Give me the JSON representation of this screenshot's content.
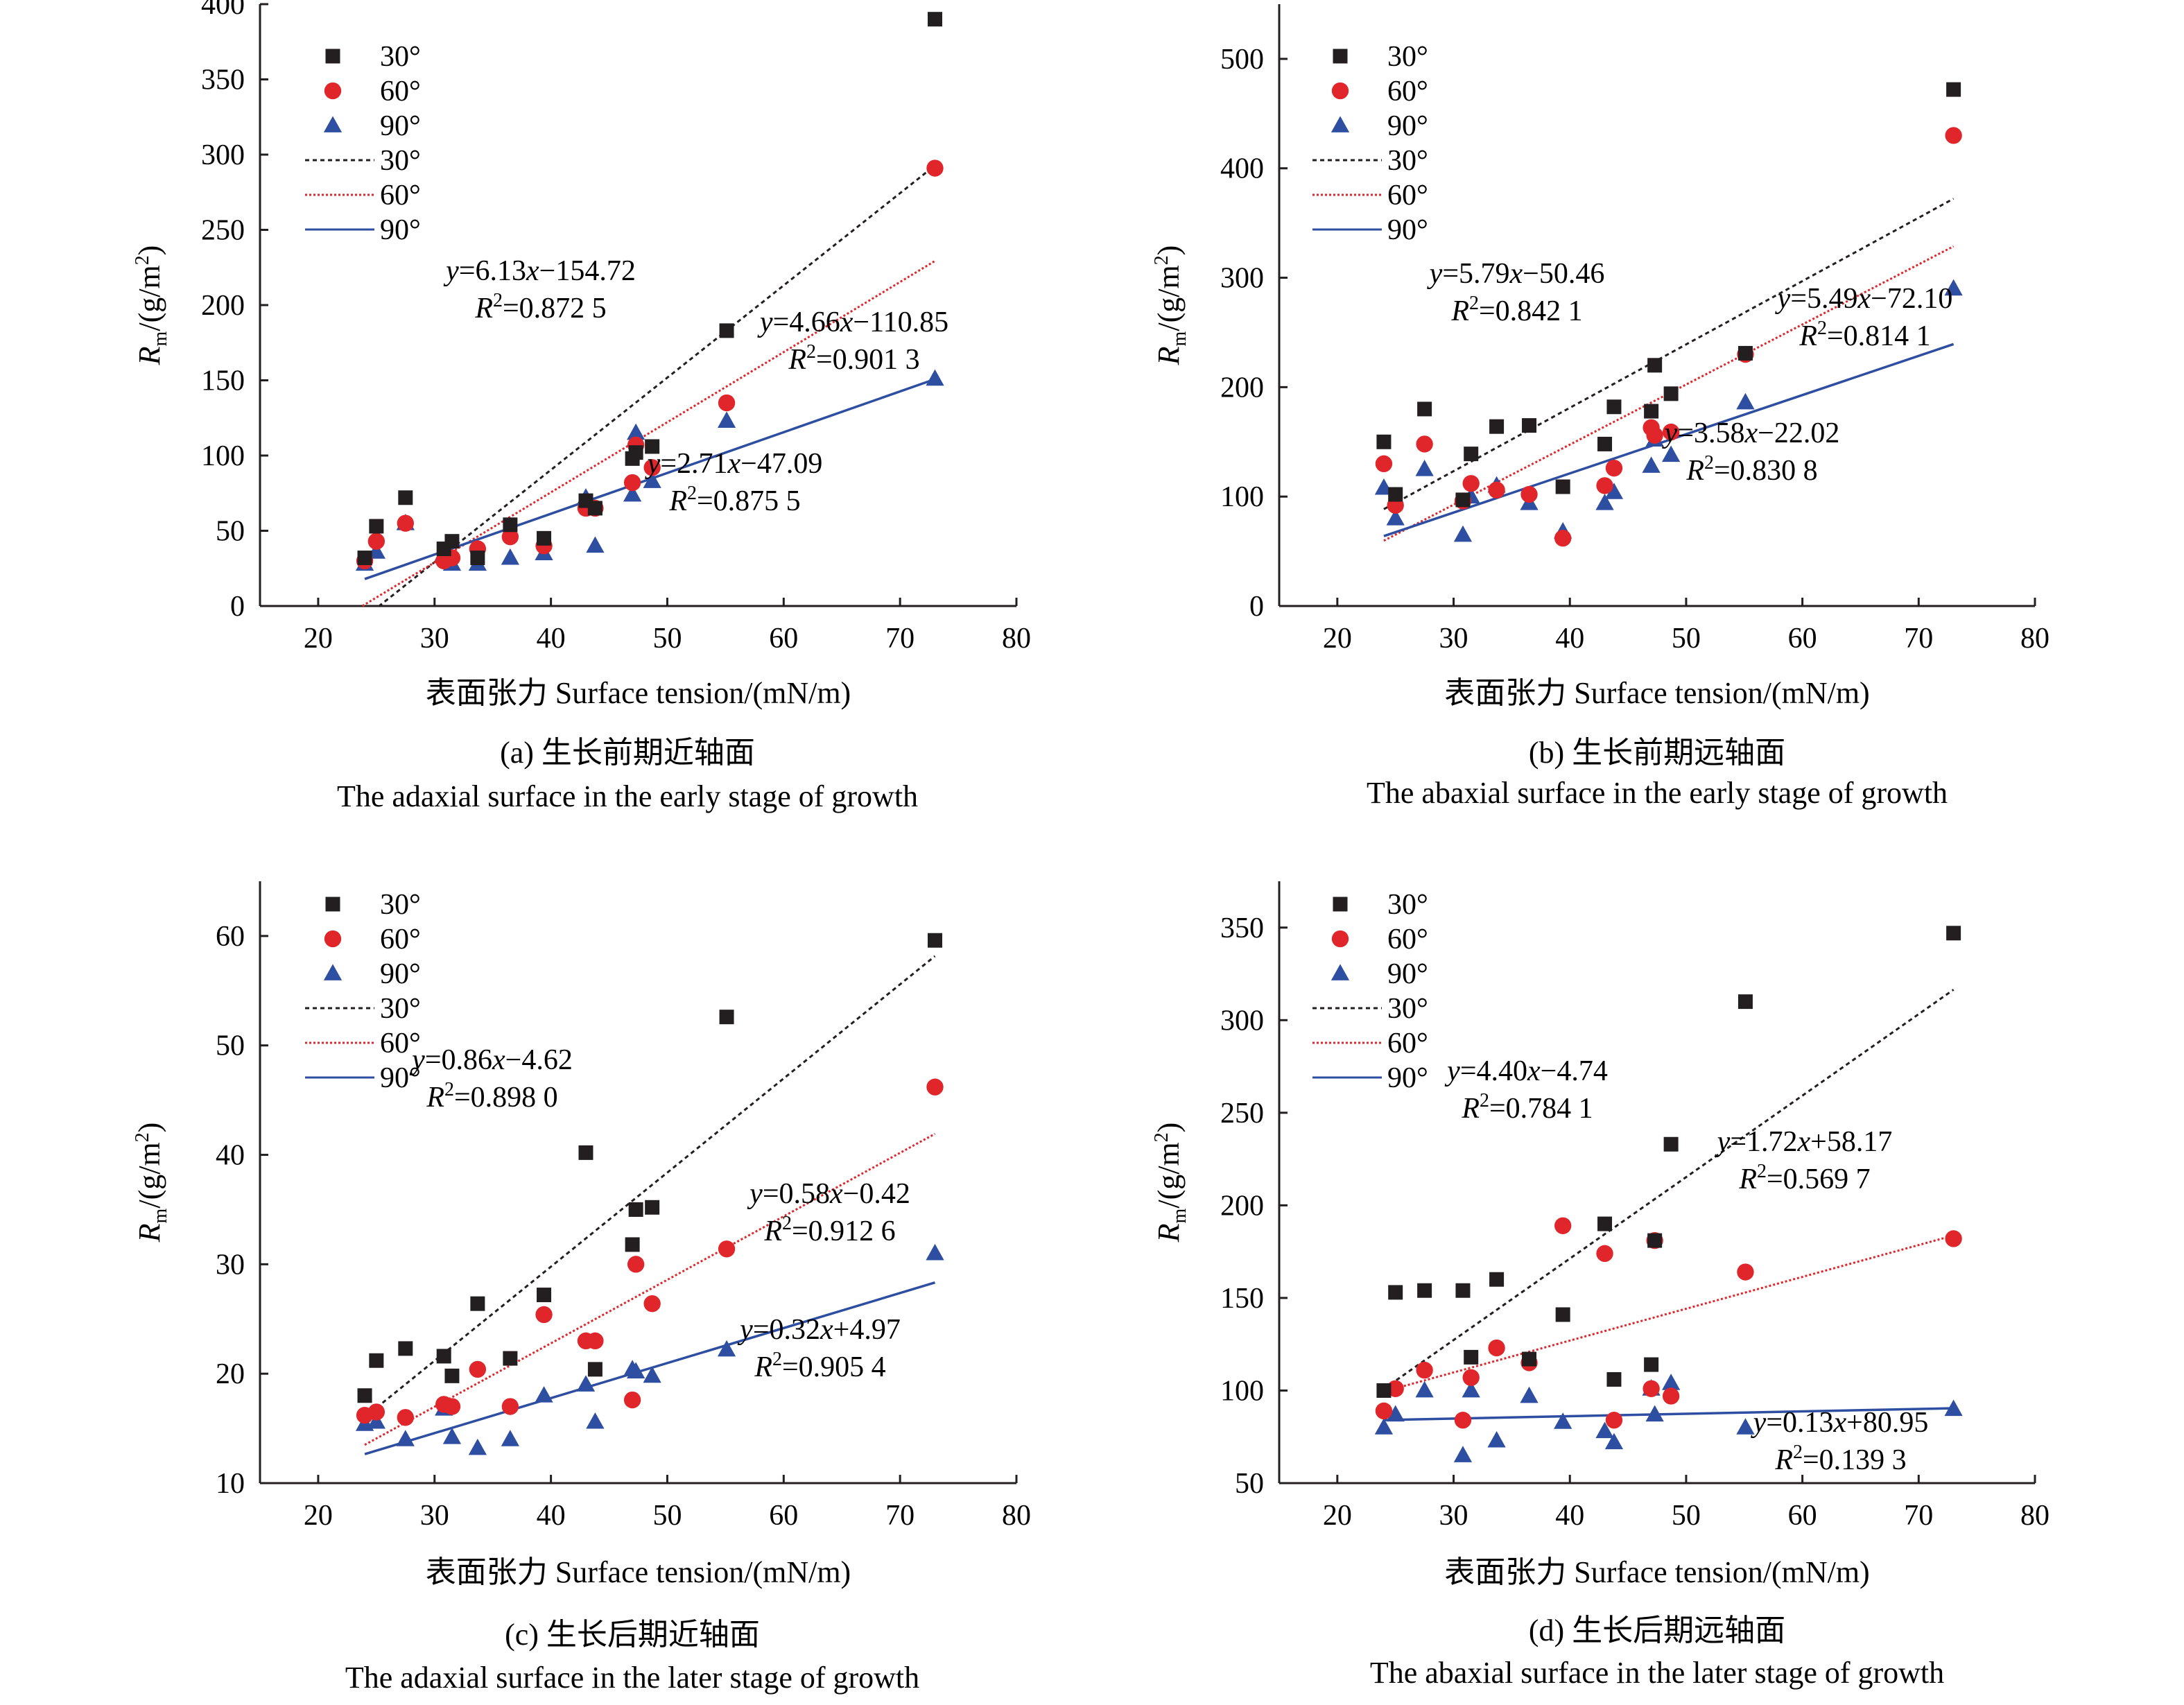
{
  "series_style": {
    "30": {
      "color": "#231f20",
      "marker": "square",
      "dash": "6,5"
    },
    "60": {
      "color": "#e0262b",
      "marker": "circle",
      "dash": "3,3"
    },
    "90": {
      "color": "#2e4ea1",
      "marker": "triangle",
      "dash": ""
    }
  },
  "chart_data": [
    {
      "type": "scatter",
      "caption_cn": "(a) 生长前期近轴面",
      "caption_en": "The adaxial surface in the early stage of growth",
      "xlabel_cn": "表面张力",
      "xlabel_en": "Surface tension/(mN/m)",
      "ylabel_main": "R",
      "ylabel_sub": "m",
      "ylabel_unit": "/(g/m",
      "ylabel_sup": "2",
      "ylabel_tail": ")",
      "xlim": [
        15,
        80
      ],
      "ylim": [
        0,
        400
      ],
      "xticks": [
        20,
        30,
        40,
        50,
        60,
        70,
        80
      ],
      "yticks": [
        0,
        50,
        100,
        150,
        200,
        250,
        300,
        350,
        400
      ],
      "legend": [
        "30°",
        "60°",
        "90°",
        "30°",
        "60°",
        "90°"
      ],
      "series": [
        {
          "name": "30°",
          "key": "30",
          "points": [
            [
              24,
              32
            ],
            [
              25,
              53
            ],
            [
              27.5,
              72
            ],
            [
              30.8,
              38
            ],
            [
              31.5,
              43
            ],
            [
              33.7,
              32
            ],
            [
              36.5,
              54
            ],
            [
              39.4,
              45
            ],
            [
              43,
              70
            ],
            [
              43.8,
              65
            ],
            [
              47,
              98
            ],
            [
              47.3,
              102
            ],
            [
              48.7,
              106
            ],
            [
              55.1,
              183
            ],
            [
              73,
              390
            ]
          ],
          "fit": {
            "slope": 6.13,
            "intercept": -154.72,
            "x": [
              25.2,
              73
            ]
          },
          "eq_y": "y=6.13x−154.72",
          "eq_r": "R2=0.872 5"
        },
        {
          "name": "60°",
          "key": "60",
          "points": [
            [
              24,
              30
            ],
            [
              25,
              43
            ],
            [
              27.5,
              55
            ],
            [
              30.8,
              30
            ],
            [
              31.5,
              32
            ],
            [
              33.7,
              38
            ],
            [
              36.5,
              46
            ],
            [
              39.4,
              40
            ],
            [
              43,
              65
            ],
            [
              43.8,
              65
            ],
            [
              47,
              82
            ],
            [
              47.3,
              107
            ],
            [
              48.7,
              92
            ],
            [
              55.1,
              135
            ],
            [
              73,
              291
            ]
          ],
          "fit": {
            "slope": 4.66,
            "intercept": -110.85,
            "x": [
              23.8,
              73
            ]
          },
          "eq_y": "y=4.66x−110.85",
          "eq_r": "R2=0.901 3"
        },
        {
          "name": "90°",
          "key": "90",
          "points": [
            [
              24,
              28
            ],
            [
              25,
              36
            ],
            [
              27.5,
              55
            ],
            [
              30.8,
              35
            ],
            [
              31.5,
              28
            ],
            [
              33.7,
              28
            ],
            [
              36.5,
              32
            ],
            [
              39.4,
              35
            ],
            [
              43,
              72
            ],
            [
              43.8,
              40
            ],
            [
              47,
              74
            ],
            [
              47.3,
              115
            ],
            [
              48.7,
              83
            ],
            [
              55.1,
              123
            ],
            [
              73,
              151
            ]
          ],
          "fit": {
            "slope": 2.71,
            "intercept": -47.09,
            "x": [
              24,
              73
            ]
          },
          "eq_y": "y=2.71x−47.09",
          "eq_r": "R2=0.875 5"
        }
      ]
    },
    {
      "type": "scatter",
      "caption_cn": "(b) 生长前期远轴面",
      "caption_en": "The abaxial surface in the early stage of growth",
      "xlabel_cn": "表面张力",
      "xlabel_en": "Surface tension/(mN/m)",
      "ylabel_main": "R",
      "ylabel_sub": "m",
      "ylabel_unit": "/(g/m",
      "ylabel_sup": "2",
      "ylabel_tail": ")",
      "xlim": [
        15,
        80
      ],
      "ylim": [
        0,
        550
      ],
      "xticks": [
        20,
        30,
        40,
        50,
        60,
        70,
        80
      ],
      "yticks": [
        0,
        100,
        200,
        300,
        400,
        500
      ],
      "legend": [
        "30°",
        "60°",
        "90°",
        "30°",
        "60°",
        "90°"
      ],
      "series": [
        {
          "name": "30°",
          "key": "30",
          "points": [
            [
              24,
              150
            ],
            [
              25,
              102
            ],
            [
              27.5,
              180
            ],
            [
              30.8,
              97
            ],
            [
              31.5,
              139
            ],
            [
              33.7,
              164
            ],
            [
              36.5,
              165
            ],
            [
              39.4,
              109
            ],
            [
              43,
              148
            ],
            [
              43.8,
              182
            ],
            [
              47,
              178
            ],
            [
              47.3,
              220
            ],
            [
              48.7,
              194
            ],
            [
              55.1,
              231
            ],
            [
              73,
              472
            ]
          ],
          "fit": {
            "slope": 5.79,
            "intercept": -50.46,
            "x": [
              24,
              73
            ]
          },
          "eq_y": "y=5.79x−50.46",
          "eq_r": "R2=0.842 1"
        },
        {
          "name": "60°",
          "key": "60",
          "points": [
            [
              24,
              130
            ],
            [
              25,
              92
            ],
            [
              27.5,
              148
            ],
            [
              30.8,
              96
            ],
            [
              31.5,
              112
            ],
            [
              33.7,
              106
            ],
            [
              36.5,
              102
            ],
            [
              39.4,
              62
            ],
            [
              43,
              110
            ],
            [
              43.8,
              126
            ],
            [
              47,
              163
            ],
            [
              47.3,
              156
            ],
            [
              48.7,
              159
            ],
            [
              55.1,
              230
            ],
            [
              73,
              430
            ]
          ],
          "fit": {
            "slope": 5.49,
            "intercept": -72.1,
            "x": [
              24,
              73
            ]
          },
          "eq_y": "y=5.49x−72.10",
          "eq_r": "R2=0.814 1"
        },
        {
          "name": "90°",
          "key": "90",
          "points": [
            [
              24,
              108
            ],
            [
              25,
              80
            ],
            [
              27.5,
              125
            ],
            [
              30.8,
              65
            ],
            [
              31.5,
              100
            ],
            [
              33.7,
              110
            ],
            [
              36.5,
              94
            ],
            [
              39.4,
              68
            ],
            [
              43,
              94
            ],
            [
              43.8,
              104
            ],
            [
              47,
              128
            ],
            [
              47.3,
              152
            ],
            [
              48.7,
              138
            ],
            [
              55.1,
              186
            ],
            [
              73,
              290
            ]
          ],
          "fit": {
            "slope": 3.58,
            "intercept": -22.02,
            "x": [
              24,
              73
            ]
          },
          "eq_y": "y=3.58x−22.02",
          "eq_r": "R2=0.830 8"
        }
      ]
    },
    {
      "type": "scatter",
      "caption_cn": "(c) 生长后期近轴面",
      "caption_en": "The adaxial surface in the later stage of growth",
      "xlabel_cn": "表面张力",
      "xlabel_en": "Surface tension/(mN/m)",
      "ylabel_main": "R",
      "ylabel_sub": "m",
      "ylabel_unit": "/(g/m",
      "ylabel_sup": "2",
      "ylabel_tail": ")",
      "xlim": [
        15,
        80
      ],
      "ylim": [
        10,
        65
      ],
      "xticks": [
        20,
        30,
        40,
        50,
        60,
        70,
        80
      ],
      "yticks": [
        10,
        20,
        30,
        40,
        50,
        60
      ],
      "legend": [
        "30°",
        "60°",
        "90°",
        "30°",
        "60°",
        "90°"
      ],
      "series": [
        {
          "name": "30°",
          "key": "30",
          "points": [
            [
              24,
              18
            ],
            [
              25,
              21.2
            ],
            [
              27.5,
              22.3
            ],
            [
              30.8,
              21.6
            ],
            [
              31.5,
              19.8
            ],
            [
              33.7,
              26.4
            ],
            [
              36.5,
              21.4
            ],
            [
              39.4,
              27.2
            ],
            [
              43,
              40.2
            ],
            [
              43.8,
              20.4
            ],
            [
              47,
              31.8
            ],
            [
              47.3,
              35
            ],
            [
              48.7,
              35.2
            ],
            [
              55.1,
              52.6
            ],
            [
              73,
              59.6
            ]
          ],
          "fit": {
            "slope": 0.86,
            "intercept": -4.62,
            "x": [
              24,
              73
            ]
          },
          "eq_y": "y=0.86x−4.62",
          "eq_r": "R2=0.898 0"
        },
        {
          "name": "60°",
          "key": "60",
          "points": [
            [
              24,
              16.2
            ],
            [
              25,
              16.5
            ],
            [
              27.5,
              16
            ],
            [
              30.8,
              17.2
            ],
            [
              31.5,
              17
            ],
            [
              33.7,
              20.4
            ],
            [
              36.5,
              17
            ],
            [
              39.4,
              25.4
            ],
            [
              43,
              23
            ],
            [
              43.8,
              23
            ],
            [
              47,
              17.6
            ],
            [
              47.3,
              30
            ],
            [
              48.7,
              26.4
            ],
            [
              55.1,
              31.4
            ],
            [
              73,
              46.2
            ]
          ],
          "fit": {
            "slope": 0.58,
            "intercept": -0.42,
            "x": [
              24,
              73
            ]
          },
          "eq_y": "y=0.58x−0.42",
          "eq_r": "R2=0.912 6"
        },
        {
          "name": "90°",
          "key": "90",
          "points": [
            [
              24,
              15.4
            ],
            [
              25,
              15.6
            ],
            [
              27.5,
              14
            ],
            [
              30.8,
              16.8
            ],
            [
              31.5,
              14.2
            ],
            [
              33.7,
              13.2
            ],
            [
              36.5,
              14
            ],
            [
              39.4,
              18
            ],
            [
              43,
              19
            ],
            [
              43.8,
              15.6
            ],
            [
              47,
              20.4
            ],
            [
              47.3,
              20.2
            ],
            [
              48.7,
              19.8
            ],
            [
              55.1,
              22.2
            ],
            [
              73,
              31
            ]
          ],
          "fit": {
            "slope": 0.32,
            "intercept": 4.97,
            "x": [
              24,
              73
            ]
          },
          "eq_y": "y=0.32x+4.97",
          "eq_r": "R2=0.905 4"
        }
      ]
    },
    {
      "type": "scatter",
      "caption_cn": "(d) 生长后期远轴面",
      "caption_en": "The abaxial surface in the later stage of growth",
      "xlabel_cn": "表面张力",
      "xlabel_en": "Surface tension/(mN/m)",
      "ylabel_main": "R",
      "ylabel_sub": "m",
      "ylabel_unit": "/(g/m",
      "ylabel_sup": "2",
      "ylabel_tail": ")",
      "xlim": [
        15,
        80
      ],
      "ylim": [
        50,
        375
      ],
      "xticks": [
        20,
        30,
        40,
        50,
        60,
        70,
        80
      ],
      "yticks": [
        50,
        100,
        150,
        200,
        250,
        300,
        350
      ],
      "legend": [
        "30°",
        "60°",
        "90°",
        "30°",
        "60°",
        "90°"
      ],
      "series": [
        {
          "name": "30°",
          "key": "30",
          "points": [
            [
              24,
              100
            ],
            [
              25,
              153
            ],
            [
              27.5,
              154
            ],
            [
              30.8,
              154
            ],
            [
              31.5,
              118
            ],
            [
              33.7,
              160
            ],
            [
              36.5,
              117
            ],
            [
              39.4,
              141
            ],
            [
              43,
              190
            ],
            [
              43.8,
              106
            ],
            [
              47,
              114
            ],
            [
              47.3,
              181
            ],
            [
              48.7,
              233
            ],
            [
              55.1,
              310
            ],
            [
              73,
              347
            ]
          ],
          "fit": {
            "slope": 4.4,
            "intercept": -4.74,
            "x": [
              24,
              73
            ]
          },
          "eq_y": "y=4.40x−4.74",
          "eq_r": "R2=0.784 1"
        },
        {
          "name": "60°",
          "key": "60",
          "points": [
            [
              24,
              89
            ],
            [
              25,
              101
            ],
            [
              27.5,
              111
            ],
            [
              30.8,
              84
            ],
            [
              31.5,
              107
            ],
            [
              33.7,
              123
            ],
            [
              36.5,
              115
            ],
            [
              39.4,
              189
            ],
            [
              43,
              174
            ],
            [
              43.8,
              84
            ],
            [
              47,
              101
            ],
            [
              47.3,
              181
            ],
            [
              48.7,
              97
            ],
            [
              55.1,
              164
            ],
            [
              73,
              182
            ]
          ],
          "fit": {
            "slope": 1.72,
            "intercept": 58.17,
            "x": [
              24,
              73
            ]
          },
          "eq_y": "y=1.72x+58.17",
          "eq_r": "R2=0.569 7"
        },
        {
          "name": "90°",
          "key": "90",
          "points": [
            [
              24,
              80
            ],
            [
              25,
              87
            ],
            [
              27.5,
              100
            ],
            [
              30.8,
              65
            ],
            [
              31.5,
              100
            ],
            [
              33.7,
              73
            ],
            [
              36.5,
              97
            ],
            [
              39.4,
              83
            ],
            [
              43,
              78
            ],
            [
              43.8,
              72
            ],
            [
              47,
              101
            ],
            [
              47.3,
              87
            ],
            [
              48.7,
              104
            ],
            [
              55.1,
              80
            ],
            [
              73,
              90
            ]
          ],
          "fit": {
            "slope": 0.13,
            "intercept": 80.95,
            "x": [
              24,
              73
            ]
          },
          "eq_y": "y=0.13x+80.95",
          "eq_r": "R2=0.139 3"
        }
      ]
    }
  ]
}
